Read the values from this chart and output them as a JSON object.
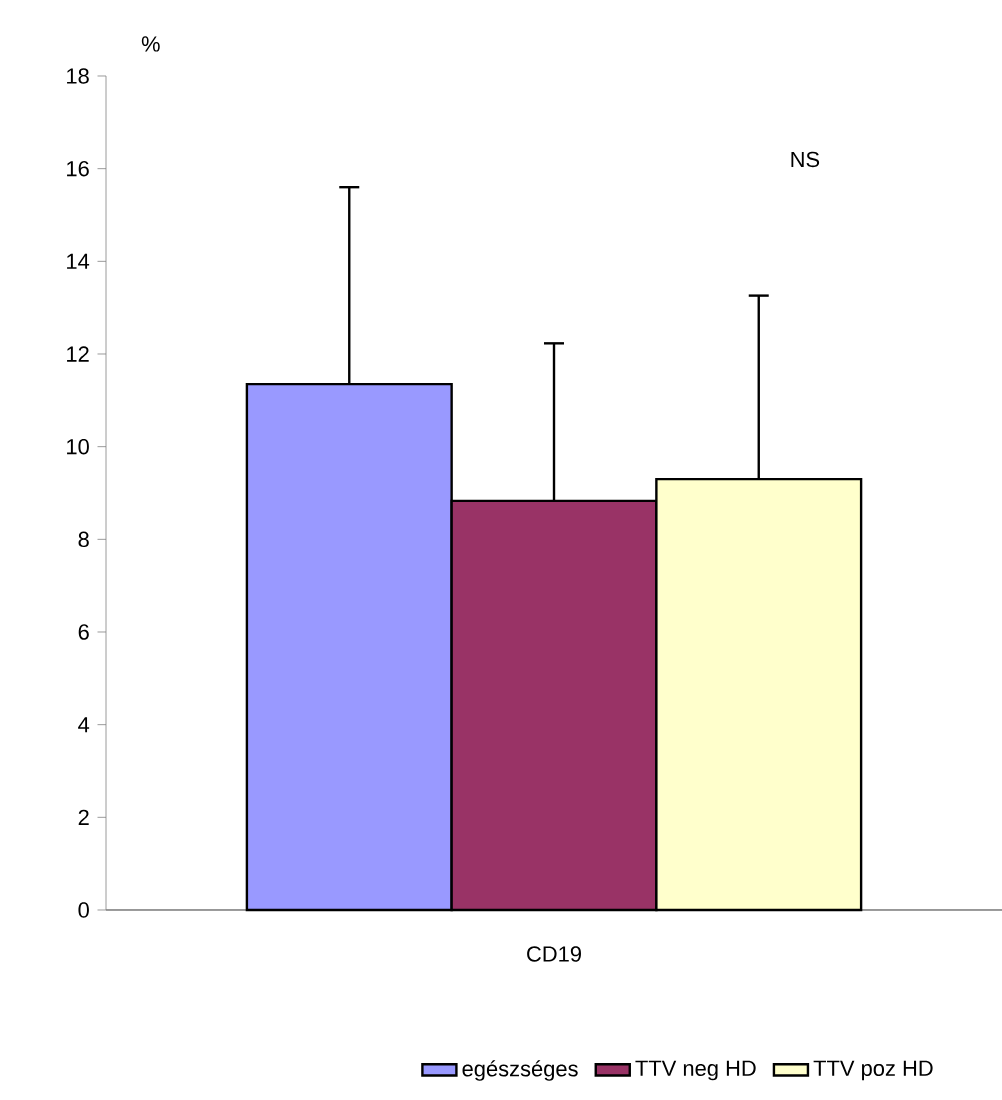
{
  "chart_data": {
    "type": "bar",
    "ylabel": "%",
    "categories": [
      "CD19"
    ],
    "series": [
      {
        "name": "egészséges",
        "color": "#9999ff",
        "values": [
          11.35
        ],
        "errors": [
          [
            11.35,
            15.6
          ]
        ]
      },
      {
        "name": "TTV neg HD",
        "color": "#993366",
        "values": [
          8.83
        ],
        "errors": [
          [
            8.83,
            12.23
          ]
        ]
      },
      {
        "name": "TTV poz HD",
        "color": "#ffffcc",
        "values": [
          9.3
        ],
        "errors": [
          [
            9.3,
            13.26
          ]
        ]
      }
    ],
    "ylim": [
      0,
      18
    ],
    "yticks": [
      0,
      2,
      4,
      6,
      8,
      10,
      12,
      14,
      16,
      18
    ],
    "annotations": [
      "NS"
    ],
    "legend": "bottom",
    "grid": false
  }
}
